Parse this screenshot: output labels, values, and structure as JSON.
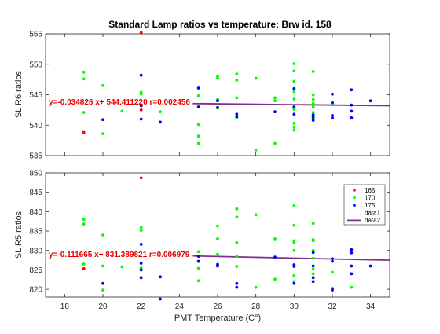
{
  "chart_data": [
    {
      "type": "scatter",
      "title": "Standard Lamp ratios vs temperature: Brw id. 158",
      "ylabel": "SL R6 ratios",
      "xlim": [
        17,
        35
      ],
      "ylim": [
        535,
        555
      ],
      "xticks": [
        18,
        20,
        22,
        24,
        26,
        28,
        30,
        32,
        34
      ],
      "yticks": [
        535,
        540,
        545,
        550,
        555
      ],
      "grid": false,
      "fit_label": "y=-0.034826 x+ 544.411220 r=0.002456",
      "fit": {
        "x": [
          24.7,
          35
        ],
        "y": [
          543.55,
          543.2
        ]
      },
      "series": [
        {
          "color": "#ff0000",
          "points": [
            [
              19,
              538.8
            ],
            [
              22,
              555.2
            ],
            [
              22,
              542.5
            ]
          ]
        },
        {
          "color": "#00ff00",
          "points": [
            [
              19,
              548.7
            ],
            [
              19,
              547.6
            ],
            [
              19,
              542.1
            ],
            [
              20,
              546.5
            ],
            [
              20,
              538.6
            ],
            [
              21,
              542.3
            ],
            [
              22,
              545.4
            ],
            [
              22,
              545.1
            ],
            [
              23,
              542.2
            ],
            [
              25,
              544.8
            ],
            [
              25,
              540.1
            ],
            [
              25,
              538.2
            ],
            [
              25,
              537.0
            ],
            [
              26,
              548.0
            ],
            [
              26,
              547.7
            ],
            [
              26,
              544.2
            ],
            [
              26,
              542.8
            ],
            [
              27,
              548.4
            ],
            [
              27,
              547.4
            ],
            [
              27,
              544.5
            ],
            [
              27,
              541.2
            ],
            [
              28,
              547.7
            ],
            [
              28,
              535.9
            ],
            [
              29,
              544.5
            ],
            [
              29,
              544.0
            ],
            [
              29,
              537.0
            ],
            [
              30,
              550.1
            ],
            [
              30,
              548.9
            ],
            [
              30,
              547.2
            ],
            [
              30,
              545.5
            ],
            [
              30,
              544.3
            ],
            [
              30,
              542.6
            ],
            [
              30,
              540.3
            ],
            [
              30,
              539.7
            ],
            [
              30,
              539.2
            ],
            [
              31,
              548.8
            ],
            [
              31,
              545.0
            ],
            [
              31,
              544.2
            ],
            [
              31,
              543.6
            ],
            [
              31,
              543.0
            ],
            [
              31,
              542.1
            ],
            [
              31,
              541.2
            ],
            [
              32,
              543.6
            ]
          ]
        },
        {
          "color": "#0000ff",
          "points": [
            [
              20,
              540.9
            ],
            [
              22,
              548.2
            ],
            [
              22,
              543.2
            ],
            [
              22,
              541.0
            ],
            [
              23,
              540.5
            ],
            [
              25,
              546.1
            ],
            [
              25,
              543.0
            ],
            [
              26,
              544.0
            ],
            [
              26,
              542.9
            ],
            [
              27,
              541.8
            ],
            [
              27,
              541.4
            ],
            [
              29,
              542.2
            ],
            [
              30,
              546.0
            ],
            [
              30,
              543.0
            ],
            [
              30,
              541.8
            ],
            [
              31,
              541.7
            ],
            [
              31,
              541.3
            ],
            [
              31,
              540.8
            ],
            [
              32,
              545.1
            ],
            [
              32,
              543.7
            ],
            [
              32,
              541.6
            ],
            [
              32,
              541.2
            ],
            [
              33,
              545.8
            ],
            [
              33,
              543.3
            ],
            [
              33,
              542.3
            ],
            [
              33,
              541.2
            ],
            [
              34,
              544.0
            ]
          ]
        }
      ]
    },
    {
      "type": "scatter",
      "ylabel": "SL R5 ratios",
      "xlabel": "PMT Temperature (C°)",
      "xlim": [
        17,
        35
      ],
      "ylim": [
        818,
        850
      ],
      "xticks": [
        18,
        20,
        22,
        24,
        26,
        28,
        30,
        32,
        34
      ],
      "xtick_labels": [
        "18",
        "20",
        "22",
        "24",
        "26",
        "28",
        "30",
        "32",
        "34"
      ],
      "yticks": [
        820,
        825,
        830,
        835,
        840,
        845,
        850
      ],
      "grid": false,
      "fit_label": "y=-0.111665 x+ 831.389821 r=0.006979",
      "fit": {
        "x": [
          24.7,
          35
        ],
        "y": [
          828.6,
          827.5
        ]
      },
      "legend": {
        "position": "top-right",
        "entries": [
          {
            "label": "165",
            "kind": "marker",
            "color": "#ff0000"
          },
          {
            "label": "170",
            "kind": "marker",
            "color": "#00ff00"
          },
          {
            "label": "175",
            "kind": "marker",
            "color": "#0000ff"
          },
          {
            "label": "data1",
            "kind": "none",
            "color": ""
          },
          {
            "label": "data2",
            "kind": "line",
            "color": "#7e2f8e"
          }
        ]
      },
      "series": [
        {
          "name": "165",
          "color": "#ff0000",
          "points": [
            [
              19,
              825.3
            ],
            [
              22,
              848.7
            ]
          ]
        },
        {
          "name": "170",
          "color": "#00ff00",
          "points": [
            [
              19,
              838.0
            ],
            [
              19,
              836.8
            ],
            [
              19,
              826.5
            ],
            [
              20,
              834.0
            ],
            [
              20,
              826.0
            ],
            [
              20,
              819.8
            ],
            [
              21,
              825.8
            ],
            [
              22,
              836.0
            ],
            [
              22,
              835.2
            ],
            [
              22,
              825.5
            ],
            [
              25,
              829.7
            ],
            [
              25,
              825.4
            ],
            [
              25,
              822.2
            ],
            [
              26,
              836.3
            ],
            [
              26,
              833.0
            ],
            [
              26,
              829.0
            ],
            [
              26,
              826.2
            ],
            [
              27,
              840.7
            ],
            [
              27,
              838.6
            ],
            [
              27,
              832.0
            ],
            [
              27,
              828.5
            ],
            [
              27,
              825.9
            ],
            [
              28,
              839.2
            ],
            [
              28,
              820.5
            ],
            [
              29,
              833.0
            ],
            [
              29,
              832.8
            ],
            [
              29,
              822.6
            ],
            [
              30,
              841.5
            ],
            [
              30,
              836.5
            ],
            [
              30,
              832.5
            ],
            [
              30,
              832.1
            ],
            [
              30,
              830.0
            ],
            [
              30,
              826.0
            ],
            [
              30,
              823.5
            ],
            [
              30,
              822.0
            ],
            [
              31,
              837.0
            ],
            [
              31,
              832.8
            ],
            [
              31,
              832.5
            ],
            [
              31,
              830.0
            ],
            [
              31,
              828.0
            ],
            [
              31,
              825.2
            ],
            [
              31,
              824.0
            ],
            [
              32,
              824.4
            ],
            [
              33,
              820.5
            ]
          ]
        },
        {
          "name": "175",
          "color": "#0000ff",
          "points": [
            [
              20,
              821.5
            ],
            [
              22,
              831.6
            ],
            [
              22,
              826.7
            ],
            [
              22,
              825.0
            ],
            [
              22,
              823.0
            ],
            [
              23,
              823.2
            ],
            [
              23,
              817.5
            ],
            [
              25,
              828.5
            ],
            [
              25,
              827.2
            ],
            [
              26,
              826.4
            ],
            [
              26,
              826.0
            ],
            [
              27,
              820.5
            ],
            [
              27,
              821.5
            ],
            [
              29,
              828.3
            ],
            [
              30,
              826.3
            ],
            [
              30,
              825.9
            ],
            [
              30,
              821.5
            ],
            [
              31,
              829.5
            ],
            [
              31,
              826.0
            ],
            [
              31,
              823.0
            ],
            [
              31,
              822.0
            ],
            [
              32,
              827.9
            ],
            [
              32,
              827.2
            ],
            [
              32,
              820.2
            ],
            [
              32,
              819.8
            ],
            [
              33,
              830.2
            ],
            [
              33,
              829.4
            ],
            [
              33,
              826.0
            ],
            [
              33,
              824.0
            ],
            [
              34,
              826.0
            ]
          ]
        }
      ]
    }
  ]
}
